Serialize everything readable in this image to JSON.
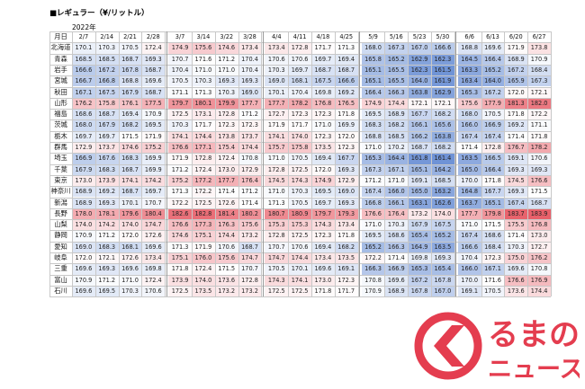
{
  "title": "■レギュラー（¥/リットル）",
  "year": "2022年",
  "corner_label": "月日",
  "dates": [
    "2/7",
    "2/14",
    "2/21",
    "2/28",
    "3/7",
    "3/14",
    "3/22",
    "3/28",
    "4/4",
    "4/11",
    "4/18",
    "4/25",
    "5/9",
    "5/16",
    "5/23",
    "5/30",
    "6/6",
    "6/13",
    "6/20",
    "6/27"
  ],
  "rows": [
    {
      "pref": "北海道",
      "values": [
        "170.1",
        "170.3",
        "170.5",
        "172.4",
        "174.9",
        "175.6",
        "174.6",
        "173.4",
        "173.4",
        "172.8",
        "171.7",
        "171.3",
        "168.0",
        "167.3",
        "167.0",
        "166.6",
        "168.8",
        "169.6",
        "171.9",
        "173.8"
      ]
    },
    {
      "pref": "青森",
      "values": [
        "168.5",
        "168.5",
        "168.7",
        "169.3",
        "170.7",
        "171.6",
        "171.2",
        "170.4",
        "170.6",
        "170.6",
        "169.7",
        "169.4",
        "165.8",
        "165.2",
        "162.9",
        "162.3",
        "164.5",
        "166.4",
        "168.9",
        "170.9"
      ]
    },
    {
      "pref": "岩手",
      "values": [
        "166.6",
        "167.2",
        "167.8",
        "168.7",
        "170.4",
        "171.0",
        "171.0",
        "170.4",
        "170.3",
        "169.7",
        "168.7",
        "168.7",
        "165.1",
        "165.5",
        "162.3",
        "161.5",
        "163.3",
        "165.2",
        "167.2",
        "168.4"
      ]
    },
    {
      "pref": "宮城",
      "values": [
        "166.7",
        "166.8",
        "168.8",
        "169.6",
        "170.5",
        "170.3",
        "169.3",
        "169.3",
        "169.0",
        "168.1",
        "167.5",
        "166.6",
        "165.1",
        "165.5",
        "164.0",
        "161.9",
        "163.4",
        "164.0",
        "165.9",
        "167.3"
      ]
    },
    {
      "pref": "秋田",
      "values": [
        "167.1",
        "167.5",
        "167.9",
        "168.7",
        "171.1",
        "171.3",
        "170.3",
        "169.0",
        "170.1",
        "170.4",
        "169.8",
        "169.2",
        "166.4",
        "166.3",
        "163.8",
        "162.9",
        "165.3",
        "167.2",
        "172.0",
        "172.1"
      ]
    },
    {
      "pref": "山形",
      "values": [
        "176.2",
        "175.8",
        "176.1",
        "177.5",
        "179.7",
        "180.1",
        "179.9",
        "177.7",
        "177.7",
        "178.2",
        "176.8",
        "176.5",
        "174.9",
        "174.4",
        "172.1",
        "172.1",
        "175.6",
        "177.9",
        "181.3",
        "182.0"
      ]
    },
    {
      "pref": "福島",
      "values": [
        "168.6",
        "168.7",
        "169.4",
        "170.9",
        "172.5",
        "173.1",
        "172.8",
        "171.2",
        "172.7",
        "172.3",
        "172.3",
        "171.8",
        "169.5",
        "168.9",
        "167.7",
        "168.2",
        "168.0",
        "170.5",
        "171.8",
        "172.2"
      ]
    },
    {
      "pref": "茨城",
      "values": [
        "168.0",
        "167.9",
        "168.2",
        "169.5",
        "170.3",
        "171.7",
        "172.3",
        "172.3",
        "171.9",
        "171.7",
        "171.0",
        "169.9",
        "168.3",
        "168.2",
        "166.1",
        "165.6",
        "166.0",
        "166.9",
        "169.2",
        "171.1"
      ]
    },
    {
      "pref": "栃木",
      "values": [
        "169.7",
        "169.7",
        "171.5",
        "171.9",
        "174.1",
        "174.4",
        "173.8",
        "173.7",
        "174.1",
        "174.0",
        "172.3",
        "172.0",
        "168.8",
        "168.5",
        "166.2",
        "163.8",
        "167.4",
        "167.4",
        "171.4",
        "171.8"
      ]
    },
    {
      "pref": "群馬",
      "values": [
        "172.9",
        "173.7",
        "174.6",
        "175.2",
        "176.6",
        "177.1",
        "175.4",
        "174.4",
        "175.7",
        "175.8",
        "173.5",
        "172.3",
        "171.0",
        "170.2",
        "168.7",
        "168.2",
        "171.4",
        "172.8",
        "176.7",
        "178.2"
      ]
    },
    {
      "pref": "埼玉",
      "values": [
        "166.9",
        "167.6",
        "168.3",
        "169.9",
        "171.9",
        "172.8",
        "172.4",
        "170.8",
        "171.0",
        "170.5",
        "169.4",
        "167.7",
        "165.3",
        "164.4",
        "161.8",
        "161.4",
        "163.5",
        "166.5",
        "169.1",
        "170.6"
      ]
    },
    {
      "pref": "千葉",
      "values": [
        "167.9",
        "168.3",
        "168.7",
        "169.9",
        "171.2",
        "172.4",
        "173.0",
        "172.9",
        "172.8",
        "172.5",
        "172.0",
        "169.3",
        "167.3",
        "167.1",
        "165.1",
        "164.2",
        "165.0",
        "166.4",
        "169.3",
        "169.3"
      ]
    },
    {
      "pref": "東京",
      "values": [
        "173.0",
        "173.9",
        "174.1",
        "174.2",
        "175.2",
        "177.2",
        "177.7",
        "176.4",
        "174.5",
        "174.3",
        "174.9",
        "172.9",
        "171.2",
        "171.0",
        "169.1",
        "168.5",
        "170.0",
        "171.8",
        "174.5",
        "176.6"
      ]
    },
    {
      "pref": "神奈川",
      "values": [
        "168.9",
        "169.2",
        "168.7",
        "169.7",
        "171.3",
        "172.2",
        "171.4",
        "171.2",
        "171.0",
        "170.3",
        "169.5",
        "169.0",
        "167.4",
        "166.0",
        "165.0",
        "163.2",
        "164.8",
        "167.7",
        "169.3",
        "171.5"
      ]
    },
    {
      "pref": "新潟",
      "values": [
        "168.9",
        "169.3",
        "170.1",
        "170.7",
        "172.2",
        "172.5",
        "172.6",
        "171.4",
        "171.3",
        "170.5",
        "169.7",
        "169.3",
        "166.8",
        "166.1",
        "163.1",
        "162.6",
        "163.7",
        "165.1",
        "167.4",
        "168.7"
      ]
    },
    {
      "pref": "長野",
      "values": [
        "178.0",
        "178.1",
        "179.6",
        "180.4",
        "182.6",
        "182.8",
        "181.4",
        "180.2",
        "180.7",
        "180.9",
        "179.7",
        "179.3",
        "176.6",
        "176.4",
        "173.2",
        "174.0",
        "177.7",
        "179.8",
        "183.7",
        "183.9"
      ]
    },
    {
      "pref": "山梨",
      "values": [
        "174.0",
        "174.2",
        "174.0",
        "174.7",
        "176.6",
        "177.3",
        "176.3",
        "175.6",
        "175.3",
        "175.3",
        "174.3",
        "173.4",
        "171.0",
        "170.3",
        "167.9",
        "167.5",
        "171.0",
        "171.5",
        "175.5",
        "176.8"
      ]
    },
    {
      "pref": "静岡",
      "values": [
        "170.9",
        "171.2",
        "172.0",
        "172.6",
        "174.6",
        "175.1",
        "174.4",
        "173.2",
        "172.8",
        "172.5",
        "172.3",
        "171.8",
        "169.5",
        "168.6",
        "165.4",
        "165.2",
        "167.4",
        "168.6",
        "171.4",
        "173.0"
      ]
    },
    {
      "pref": "愛知",
      "values": [
        "169.0",
        "168.3",
        "168.1",
        "169.6",
        "171.3",
        "171.9",
        "170.6",
        "168.7",
        "170.7",
        "170.6",
        "169.4",
        "168.2",
        "165.2",
        "166.3",
        "164.9",
        "163.5",
        "166.6",
        "168.4",
        "170.3",
        "172.7"
      ]
    },
    {
      "pref": "岐阜",
      "values": [
        "172.0",
        "172.1",
        "172.6",
        "173.4",
        "175.1",
        "176.0",
        "175.6",
        "174.7",
        "174.7",
        "174.4",
        "173.4",
        "173.5",
        "172.2",
        "171.4",
        "169.8",
        "169.3",
        "170.4",
        "172.3",
        "175.0",
        "176.2"
      ]
    },
    {
      "pref": "三重",
      "values": [
        "169.6",
        "169.3",
        "169.6",
        "169.8",
        "171.8",
        "172.4",
        "171.5",
        "170.7",
        "170.5",
        "170.1",
        "169.6",
        "169.1",
        "166.3",
        "166.9",
        "165.3",
        "165.4",
        "166.0",
        "167.1",
        "169.6",
        "170.8"
      ]
    },
    {
      "pref": "富山",
      "values": [
        "170.9",
        "171.2",
        "171.0",
        "172.4",
        "173.9",
        "174.0",
        "173.6",
        "172.8",
        "174.3",
        "174.1",
        "173.0",
        "172.3",
        "170.8",
        "169.6",
        "167.2",
        "167.8",
        "170.0",
        "171.6",
        "176.6",
        "176.9"
      ]
    },
    {
      "pref": "石川",
      "values": [
        "169.6",
        "169.5",
        "170.3",
        "170.6",
        "172.5",
        "173.5",
        "173.2",
        "173.2",
        "172.5",
        "172.5",
        "171.8",
        "171.7",
        "170.9",
        "168.9",
        "167.8",
        "167.0",
        "169.1",
        "170.5",
        "173.6",
        "174.4"
      ]
    }
  ],
  "color_scale": {
    "low": "#6f93d6",
    "mid": "#ffffff",
    "high": "#e8606a",
    "min": 161.4,
    "mid_value": 171.5,
    "max": 183.9
  },
  "logo": {
    "text_top": "るまの",
    "text_bottom": "ニュース",
    "color": "#e43d4f"
  }
}
